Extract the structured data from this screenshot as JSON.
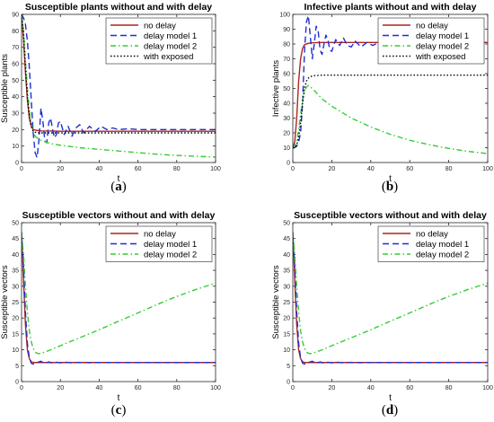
{
  "chart_data": [
    {
      "type": "line",
      "panel": "(a)",
      "caption_prefix": "(",
      "caption_letter": "a",
      "caption_suffix": ")",
      "title": "Susceptible plants without and with delay",
      "xlabel": "t",
      "ylabel": "Susceptible plants",
      "xlim": [
        0,
        100
      ],
      "ylim": [
        0,
        90
      ],
      "xticks": [
        0,
        20,
        40,
        60,
        80,
        100
      ],
      "yticks": [
        0,
        10,
        20,
        30,
        40,
        50,
        60,
        70,
        80,
        90
      ],
      "grid": false,
      "legend_position": "top-right",
      "series": [
        {
          "name": "no delay",
          "color": "#b22222",
          "style": "solid",
          "x": [
            0,
            1,
            2,
            3,
            4,
            5,
            6,
            8,
            10,
            15,
            20,
            40,
            60,
            80,
            100
          ],
          "y": [
            90,
            75,
            55,
            38,
            27,
            22,
            20,
            19.5,
            19.2,
            19.1,
            19,
            19,
            19,
            19,
            19
          ]
        },
        {
          "name": "delay model 1",
          "color": "#1f2fcf",
          "style": "dashed",
          "x": [
            0,
            1,
            2,
            3,
            4,
            5,
            6,
            7,
            8,
            9,
            10,
            11,
            12,
            13,
            14,
            15,
            16,
            17,
            18,
            19,
            20,
            22,
            24,
            26,
            28,
            30,
            32,
            35,
            38,
            41,
            44,
            47,
            50,
            55,
            60,
            65,
            70,
            80,
            90,
            100
          ],
          "y": [
            90,
            88,
            84,
            74,
            58,
            38,
            18,
            6,
            3,
            14,
            33,
            25,
            13,
            12,
            24,
            27,
            20,
            15,
            17,
            24,
            25,
            17,
            22,
            16,
            21,
            23,
            18,
            22,
            19,
            22,
            20,
            21,
            20,
            20.5,
            20,
            20,
            20,
            20,
            20,
            20
          ]
        },
        {
          "name": "delay model 2",
          "color": "#33cc33",
          "style": "dashdot",
          "x": [
            0,
            1,
            2,
            3,
            4,
            5,
            6,
            7,
            8,
            10,
            15,
            20,
            30,
            40,
            50,
            60,
            70,
            80,
            90,
            100
          ],
          "y": [
            90,
            80,
            62,
            45,
            32,
            24,
            19,
            16,
            15,
            13.5,
            11.5,
            10.5,
            9,
            8,
            7,
            6,
            5,
            4.3,
            3.8,
            3.3
          ]
        },
        {
          "name": "with exposed",
          "color": "#000000",
          "style": "dotted",
          "x": [
            0,
            1,
            2,
            3,
            4,
            5,
            6,
            8,
            10,
            15,
            20,
            40,
            60,
            80,
            100
          ],
          "y": [
            90,
            78,
            58,
            40,
            28,
            22,
            19,
            18,
            18,
            18,
            18,
            18,
            18,
            18,
            18
          ]
        }
      ]
    },
    {
      "type": "line",
      "panel": "(b)",
      "caption_prefix": "(",
      "caption_letter": "b",
      "caption_suffix": ")",
      "title": "Infective plants without and with delay",
      "xlabel": "t",
      "ylabel": "Infective plants",
      "xlim": [
        0,
        100
      ],
      "ylim": [
        0,
        100
      ],
      "xticks": [
        0,
        20,
        40,
        60,
        80,
        100
      ],
      "yticks": [
        0,
        10,
        20,
        30,
        40,
        50,
        60,
        70,
        80,
        90,
        100
      ],
      "grid": false,
      "legend_position": "top-right",
      "series": [
        {
          "name": "no delay",
          "color": "#b22222",
          "style": "solid",
          "x": [
            0,
            1,
            2,
            3,
            4,
            5,
            6,
            8,
            10,
            15,
            20,
            40,
            60,
            80,
            100
          ],
          "y": [
            10,
            14,
            30,
            55,
            70,
            77,
            79.5,
            80.5,
            80.8,
            81,
            81,
            81,
            81,
            81,
            81
          ]
        },
        {
          "name": "delay model 1",
          "color": "#1f2fcf",
          "style": "dashed",
          "x": [
            0,
            1,
            2,
            3,
            4,
            5,
            6,
            7,
            8,
            9,
            10,
            11,
            12,
            13,
            14,
            15,
            16,
            17,
            18,
            19,
            20,
            22,
            24,
            26,
            28,
            30,
            32,
            35,
            38,
            41,
            44,
            47,
            50,
            55,
            60,
            65,
            70,
            80,
            90,
            100
          ],
          "y": [
            10,
            10,
            11,
            14,
            20,
            40,
            75,
            95,
            99,
            85,
            70,
            80,
            92,
            89,
            76,
            73,
            80,
            86,
            83,
            76,
            75,
            83,
            79,
            84,
            79,
            78,
            82,
            78,
            81,
            79,
            81,
            80,
            80.5,
            80,
            80,
            80,
            80,
            80,
            80,
            80
          ]
        },
        {
          "name": "delay model 2",
          "color": "#33cc33",
          "style": "dashdot",
          "x": [
            0,
            1,
            2,
            3,
            4,
            5,
            6,
            7,
            8,
            10,
            15,
            20,
            30,
            40,
            50,
            60,
            70,
            80,
            90,
            100
          ],
          "y": [
            10,
            11,
            14,
            22,
            33,
            42,
            48,
            51,
            52,
            50,
            43,
            38,
            30,
            24,
            19,
            15,
            12,
            9.5,
            7.5,
            6
          ]
        },
        {
          "name": "with exposed",
          "color": "#000000",
          "style": "dotted",
          "x": [
            0,
            1,
            2,
            3,
            4,
            5,
            6,
            7,
            8,
            10,
            15,
            20,
            40,
            60,
            80,
            100
          ],
          "y": [
            10,
            10,
            12,
            17,
            27,
            40,
            50,
            55,
            57,
            58.5,
            59,
            59,
            59,
            59,
            59,
            59
          ]
        }
      ]
    },
    {
      "type": "line",
      "panel": "(c)",
      "caption_prefix": "(",
      "caption_letter": "c",
      "caption_suffix": ")",
      "title": "Susceptible vectors without and with delay",
      "xlabel": "t",
      "ylabel": "Susceptible vectors",
      "xlim": [
        0,
        100
      ],
      "ylim": [
        0,
        50
      ],
      "xticks": [
        0,
        20,
        40,
        60,
        80,
        100
      ],
      "yticks": [
        0,
        5,
        10,
        15,
        20,
        25,
        30,
        35,
        40,
        45,
        50
      ],
      "grid": false,
      "legend_position": "top-right",
      "series": [
        {
          "name": "no delay",
          "color": "#b22222",
          "style": "solid",
          "x": [
            0,
            1,
            2,
            3,
            4,
            5,
            6,
            8,
            10,
            20,
            40,
            60,
            80,
            100
          ],
          "y": [
            47,
            32,
            18,
            10,
            7.2,
            6.3,
            6.0,
            6.0,
            6.0,
            6.0,
            6.0,
            6.0,
            6.0,
            6.0
          ]
        },
        {
          "name": "delay model 1",
          "color": "#1f2fcf",
          "style": "dashed",
          "x": [
            0,
            1,
            2,
            3,
            4,
            5,
            6,
            7,
            8,
            10,
            12,
            14,
            16,
            18,
            20,
            23,
            26,
            30,
            35,
            40,
            50,
            60,
            80,
            100
          ],
          "y": [
            47,
            36,
            22,
            12,
            7.5,
            5.8,
            5.5,
            5.6,
            6.0,
            6.4,
            5.7,
            6.2,
            5.8,
            6.1,
            5.9,
            6.1,
            5.9,
            6.05,
            5.95,
            6,
            6,
            6,
            6,
            6
          ]
        },
        {
          "name": "delay model 2",
          "color": "#33cc33",
          "style": "dashdot",
          "x": [
            0,
            1,
            2,
            3,
            4,
            5,
            6,
            7,
            8,
            9,
            10,
            12,
            15,
            20,
            30,
            40,
            50,
            60,
            70,
            80,
            90,
            100
          ],
          "y": [
            47,
            40,
            30,
            22,
            16,
            12.5,
            10.5,
            9.3,
            8.9,
            8.8,
            8.9,
            9.3,
            10,
            11.3,
            13.8,
            16.3,
            19,
            21.6,
            24.3,
            26.8,
            29,
            31
          ]
        }
      ]
    },
    {
      "type": "line",
      "panel": "(d)",
      "caption_prefix": "(",
      "caption_letter": "d",
      "caption_suffix": ")",
      "title": "Susceptible vectors without and with delay",
      "xlabel": "t",
      "ylabel": "Susceptible vectors",
      "xlim": [
        0,
        100
      ],
      "ylim": [
        0,
        50
      ],
      "xticks": [
        0,
        20,
        40,
        60,
        80,
        100
      ],
      "yticks": [
        0,
        5,
        10,
        15,
        20,
        25,
        30,
        35,
        40,
        45,
        50
      ],
      "grid": false,
      "legend_position": "top-right",
      "series": [
        {
          "name": "no delay",
          "color": "#b22222",
          "style": "solid",
          "x": [
            0,
            1,
            2,
            3,
            4,
            5,
            6,
            8,
            10,
            20,
            40,
            60,
            80,
            100
          ],
          "y": [
            47,
            32,
            18,
            10,
            7.2,
            6.3,
            6.0,
            6.0,
            6.0,
            6.0,
            6.0,
            6.0,
            6.0,
            6.0
          ]
        },
        {
          "name": "delay model 1",
          "color": "#1f2fcf",
          "style": "dashed",
          "x": [
            0,
            1,
            2,
            3,
            4,
            5,
            6,
            7,
            8,
            10,
            12,
            14,
            16,
            18,
            20,
            23,
            26,
            30,
            35,
            40,
            50,
            60,
            80,
            100
          ],
          "y": [
            47,
            36,
            22,
            12,
            7.5,
            5.8,
            5.5,
            5.6,
            6.0,
            6.4,
            5.7,
            6.2,
            5.8,
            6.1,
            5.9,
            6.1,
            5.9,
            6.05,
            5.95,
            6,
            6,
            6,
            6,
            6
          ]
        },
        {
          "name": "delay model 2",
          "color": "#33cc33",
          "style": "dashdot",
          "x": [
            0,
            1,
            2,
            3,
            4,
            5,
            6,
            7,
            8,
            9,
            10,
            12,
            15,
            20,
            30,
            40,
            50,
            60,
            70,
            80,
            90,
            100
          ],
          "y": [
            47,
            40,
            30,
            22,
            16,
            12.5,
            10.5,
            9.3,
            8.9,
            8.8,
            8.9,
            9.3,
            10,
            11.3,
            13.8,
            16.3,
            19,
            21.6,
            24.3,
            26.8,
            29,
            31
          ]
        }
      ]
    }
  ]
}
